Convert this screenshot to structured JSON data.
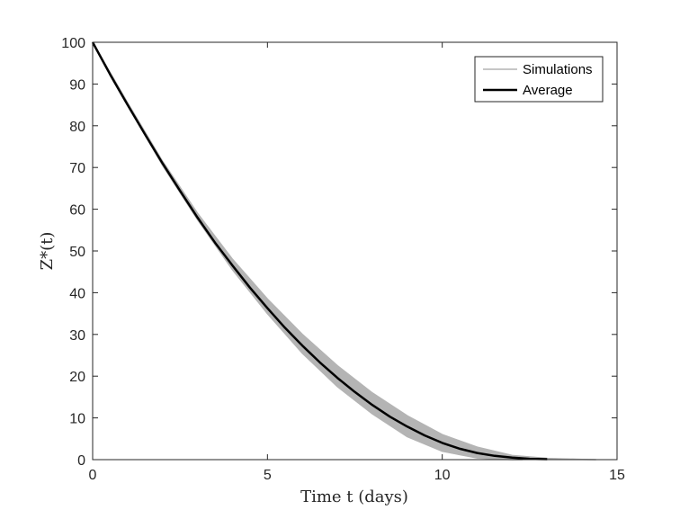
{
  "chart_data": {
    "type": "line",
    "xlabel": "Time t (days)",
    "ylabel": "Z*(t)",
    "xlim": [
      0,
      15
    ],
    "ylim": [
      0,
      100
    ],
    "xticks": [
      "0",
      "5",
      "10",
      "15"
    ],
    "yticks": [
      "0",
      "10",
      "20",
      "30",
      "40",
      "50",
      "60",
      "70",
      "80",
      "90",
      "100"
    ],
    "legend": {
      "position": "top-right",
      "entries": [
        "Simulations",
        "Average"
      ]
    },
    "colors": {
      "simulations": "#b4b4b4",
      "average": "#000000",
      "axes": "#262626"
    },
    "series": [
      {
        "name": "Simulations",
        "note_style": "band",
        "x_lower": [
          0,
          1,
          2,
          3,
          4,
          5,
          6,
          7,
          8,
          9,
          10,
          11,
          12,
          12.3
        ],
        "y_lower": [
          100,
          85,
          70.5,
          57.5,
          45.5,
          35,
          25.5,
          17.5,
          11,
          5.5,
          2,
          0.4,
          0,
          0
        ],
        "x_upper": [
          0,
          1,
          2,
          3,
          4,
          5,
          6,
          7,
          8,
          9,
          10,
          11,
          12,
          13,
          14,
          14.4
        ],
        "y_upper": [
          100,
          85.5,
          71.5,
          59,
          48,
          38.5,
          30,
          22.5,
          16,
          10.5,
          6,
          3,
          1,
          0.3,
          0.05,
          0
        ]
      },
      {
        "name": "Average",
        "x": [
          0,
          0.5,
          1,
          1.5,
          2,
          2.5,
          3,
          3.5,
          4,
          4.5,
          5,
          5.5,
          6,
          6.5,
          7,
          7.5,
          8,
          8.5,
          9,
          9.5,
          10,
          10.5,
          11,
          11.5,
          12,
          12.5,
          13
        ],
        "y": [
          100,
          92.3,
          85,
          77.9,
          71,
          64.4,
          58,
          52,
          46.5,
          41.2,
          36.3,
          31.6,
          27.3,
          23.3,
          19.6,
          16.2,
          13.1,
          10.3,
          7.9,
          5.8,
          4.0,
          2.6,
          1.6,
          0.9,
          0.5,
          0.2,
          0.1
        ]
      }
    ]
  }
}
